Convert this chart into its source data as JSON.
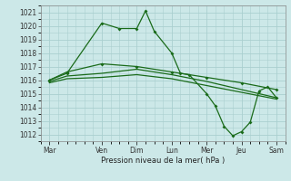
{
  "bg_color": "#cce8e8",
  "grid_color": "#aacfcf",
  "line_color": "#1a6b1a",
  "ylabel_text": "Pression niveau de la mer( hPa )",
  "x_ticks_labels": [
    "Mar",
    "Ven",
    "Dim",
    "Lun",
    "Mer",
    "Jeu",
    "Sam"
  ],
  "x_ticks_pos": [
    0,
    3,
    5,
    7,
    9,
    11,
    13
  ],
  "ylim": [
    1011.5,
    1021.5
  ],
  "yticks": [
    1012,
    1013,
    1014,
    1015,
    1016,
    1017,
    1018,
    1019,
    1020,
    1021
  ],
  "series1_x": [
    0,
    1,
    3,
    4,
    5,
    5.5,
    6,
    7,
    7.5,
    8,
    9,
    9.5,
    10,
    10.5,
    11,
    11.5,
    12,
    12.5,
    13
  ],
  "series1_y": [
    1016.0,
    1016.5,
    1020.2,
    1019.8,
    1019.8,
    1021.1,
    1019.6,
    1018.0,
    1016.5,
    1016.4,
    1015.0,
    1014.1,
    1012.6,
    1011.9,
    1012.2,
    1012.9,
    1015.2,
    1015.5,
    1014.7
  ],
  "series2_x": [
    0,
    1,
    3,
    5,
    7,
    9,
    11,
    13
  ],
  "series2_y": [
    1016.0,
    1016.6,
    1017.2,
    1017.0,
    1016.6,
    1016.2,
    1015.8,
    1015.3
  ],
  "series3_x": [
    0,
    1,
    3,
    5,
    7,
    9,
    11,
    13
  ],
  "series3_y": [
    1015.9,
    1016.3,
    1016.5,
    1016.8,
    1016.4,
    1015.9,
    1015.3,
    1014.7
  ],
  "series4_x": [
    0,
    1,
    3,
    5,
    7,
    9,
    11,
    13
  ],
  "series4_y": [
    1015.8,
    1016.1,
    1016.2,
    1016.4,
    1016.1,
    1015.6,
    1015.1,
    1014.6
  ]
}
